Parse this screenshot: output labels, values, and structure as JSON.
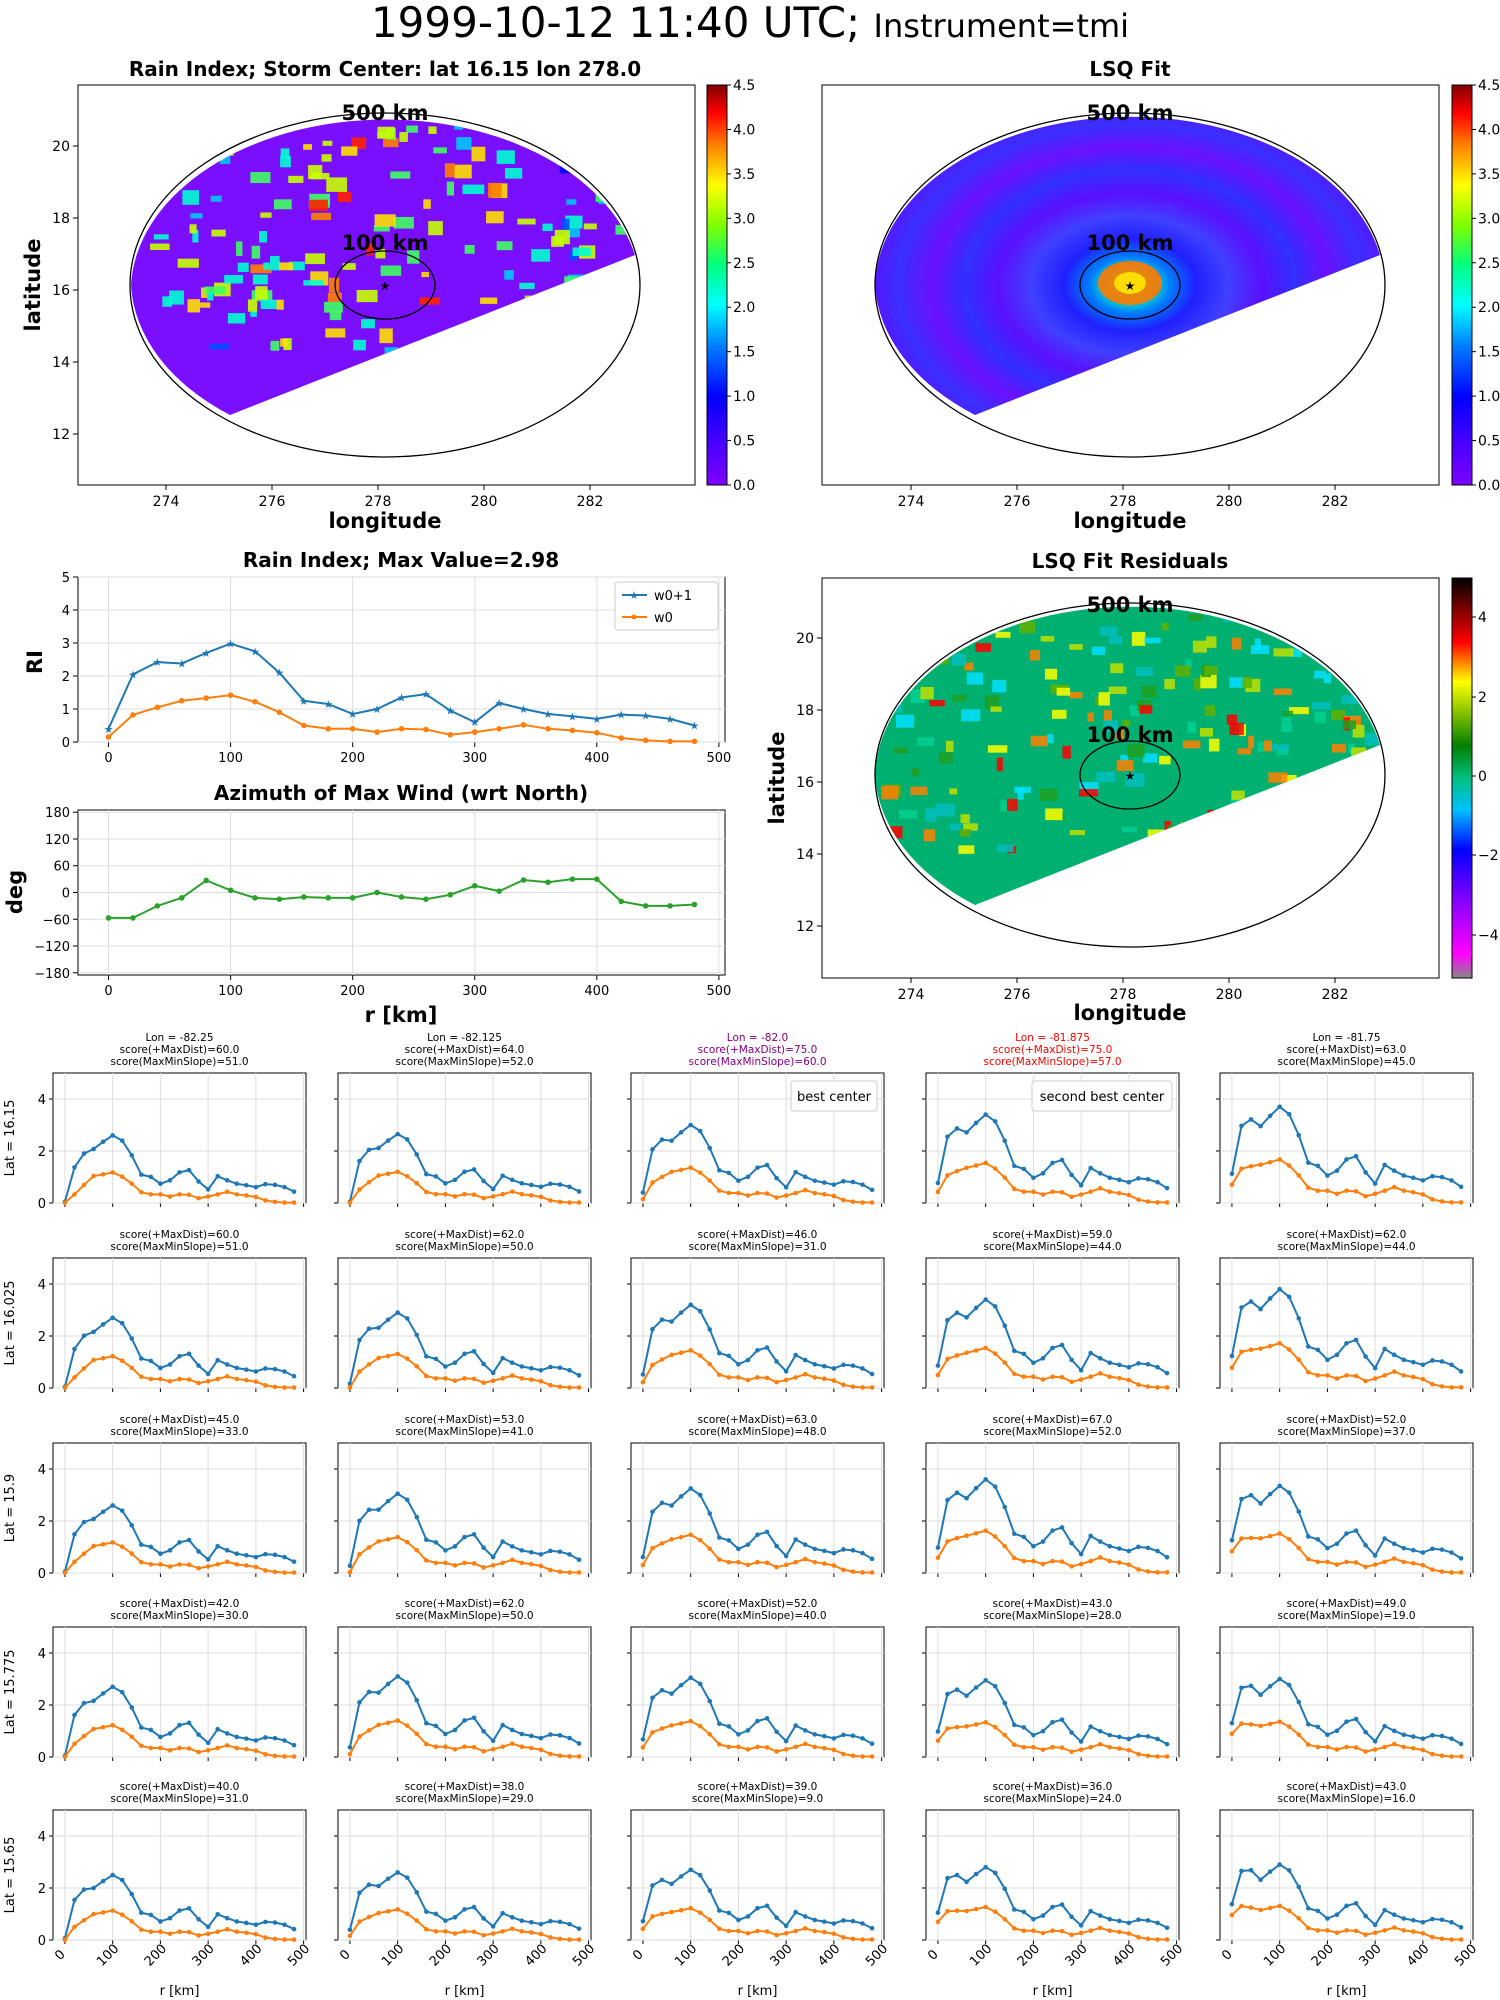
{
  "header": {
    "title": "1999-10-12 11:40 UTC;",
    "instrument": "Instrument=tmi"
  },
  "map_panels": {
    "rain_index": {
      "title": "Rain Index; Storm Center: lat 16.15 lon 278.0",
      "xlabel": "longitude",
      "ylabel": "latitude"
    },
    "lsq_fit": {
      "title": "LSQ Fit",
      "xlabel": "longitude",
      "ylabel": ""
    },
    "residuals": {
      "title": "LSQ Fit Residuals",
      "xlabel": "longitude",
      "ylabel": "latitude"
    },
    "ring_outer": "500 km",
    "ring_inner": "100 km",
    "colorbar_ticks": [
      "0.0",
      "0.5",
      "1.0",
      "1.5",
      "2.0",
      "2.5",
      "3.0",
      "3.5",
      "4.0",
      "4.5"
    ],
    "residual_colorbar_ticks": [
      "4",
      "2",
      "0",
      "−2",
      "−4"
    ],
    "lon_ticks": [
      "274",
      "276",
      "278",
      "280",
      "282"
    ],
    "lat_ticks": [
      "20",
      "18",
      "16",
      "14",
      "12"
    ]
  },
  "chart_data": [
    {
      "type": "line",
      "title": "Rain Index; Max Value=2.98",
      "ylabel": "RI",
      "xlabel": "",
      "xlim": [
        -25,
        505
      ],
      "ylim": [
        0,
        5
      ],
      "xticks": [
        "0",
        "100",
        "200",
        "300",
        "400",
        "500"
      ],
      "yticks": [
        "0",
        "1",
        "2",
        "3",
        "4",
        "5"
      ],
      "legend": "top-right",
      "x": [
        0,
        20,
        40,
        60,
        80,
        100,
        120,
        140,
        160,
        180,
        200,
        220,
        240,
        260,
        280,
        300,
        320,
        340,
        360,
        380,
        400,
        420,
        440,
        460,
        480
      ],
      "series": [
        {
          "name": "w0+1",
          "color": "#1f77b4",
          "marker": "star",
          "values": [
            0.4,
            2.05,
            2.42,
            2.38,
            2.7,
            2.98,
            2.75,
            2.1,
            1.25,
            1.15,
            0.85,
            1.0,
            1.35,
            1.45,
            0.95,
            0.6,
            1.18,
            1.0,
            0.85,
            0.78,
            0.7,
            0.83,
            0.8,
            0.7,
            0.5
          ]
        },
        {
          "name": "w0",
          "color": "#ff7f0e",
          "marker": "dot",
          "values": [
            0.15,
            0.82,
            1.05,
            1.25,
            1.33,
            1.42,
            1.22,
            0.9,
            0.5,
            0.4,
            0.4,
            0.3,
            0.4,
            0.38,
            0.22,
            0.3,
            0.4,
            0.52,
            0.4,
            0.35,
            0.28,
            0.12,
            0.05,
            0.02,
            0.02
          ]
        }
      ]
    },
    {
      "type": "line",
      "title": "Azimuth of Max Wind (wrt North)",
      "ylabel": "deg",
      "xlabel": "r [km]",
      "xlim": [
        -25,
        505
      ],
      "ylim": [
        -185,
        185
      ],
      "xticks": [
        "0",
        "100",
        "200",
        "300",
        "400",
        "500"
      ],
      "yticks": [
        "180",
        "120",
        "60",
        "0",
        "−60",
        "−120",
        "−180"
      ],
      "x": [
        0,
        20,
        40,
        60,
        80,
        100,
        120,
        140,
        160,
        180,
        200,
        220,
        240,
        260,
        280,
        300,
        320,
        340,
        360,
        380,
        400,
        420,
        440,
        460,
        480
      ],
      "series": [
        {
          "name": "",
          "color": "#2ca02c",
          "marker": "dot",
          "values": [
            -57,
            -57,
            -30,
            -12,
            27,
            5,
            -12,
            -15,
            -10,
            -12,
            -12,
            0,
            -10,
            -15,
            -5,
            15,
            3,
            28,
            23,
            30,
            30,
            -20,
            -30,
            -30,
            -27
          ]
        }
      ]
    }
  ],
  "grid": {
    "lon_titles": [
      "Lon = -82.25",
      "Lon = -82.125",
      "Lon = -82.0",
      "Lon = -81.875",
      "Lon = -81.75"
    ],
    "lon_colors": [
      "#000000",
      "#000000",
      "#800080",
      "#ff0000",
      "#000000"
    ],
    "lat_labels": [
      "Lat = 16.15",
      "Lat = 16.025",
      "Lat = 15.9",
      "Lat = 15.775",
      "Lat = 15.65"
    ],
    "xlabel": "r [km]",
    "xticks": [
      "0",
      "100",
      "200",
      "300",
      "400",
      "500"
    ],
    "yticks": [
      "0",
      "2",
      "4"
    ],
    "best_label": "best center",
    "second_label": "second best center",
    "scores": [
      [
        "score(+MaxDist)=60.0|score(MaxMinSlope)=51.0",
        "score(+MaxDist)=64.0|score(MaxMinSlope)=52.0",
        "score(+MaxDist)=75.0|score(MaxMinSlope)=60.0",
        "score(+MaxDist)=75.0|score(MaxMinSlope)=57.0",
        "score(+MaxDist)=63.0|score(MaxMinSlope)=45.0"
      ],
      [
        "score(+MaxDist)=60.0|score(MaxMinSlope)=51.0",
        "score(+MaxDist)=62.0|score(MaxMinSlope)=50.0",
        "score(+MaxDist)=46.0|score(MaxMinSlope)=31.0",
        "score(+MaxDist)=59.0|score(MaxMinSlope)=44.0",
        "score(+MaxDist)=62.0|score(MaxMinSlope)=44.0"
      ],
      [
        "score(+MaxDist)=45.0|score(MaxMinSlope)=33.0",
        "score(+MaxDist)=53.0|score(MaxMinSlope)=41.0",
        "score(+MaxDist)=63.0|score(MaxMinSlope)=48.0",
        "score(+MaxDist)=67.0|score(MaxMinSlope)=52.0",
        "score(+MaxDist)=52.0|score(MaxMinSlope)=37.0"
      ],
      [
        "score(+MaxDist)=42.0|score(MaxMinSlope)=30.0",
        "score(+MaxDist)=62.0|score(MaxMinSlope)=50.0",
        "score(+MaxDist)=52.0|score(MaxMinSlope)=40.0",
        "score(+MaxDist)=43.0|score(MaxMinSlope)=28.0",
        "score(+MaxDist)=49.0|score(MaxMinSlope)=19.0"
      ],
      [
        "score(+MaxDist)=40.0|score(MaxMinSlope)=31.0",
        "score(+MaxDist)=38.0|score(MaxMinSlope)=29.0",
        "score(+MaxDist)=39.0|score(MaxMinSlope)=9.0",
        "score(+MaxDist)=36.0|score(MaxMinSlope)=24.0",
        "score(+MaxDist)=43.0|score(MaxMinSlope)=16.0"
      ]
    ],
    "peaks": [
      [
        2.6,
        2.65,
        3.0,
        3.4,
        3.7
      ],
      [
        2.7,
        2.9,
        3.2,
        3.4,
        3.8
      ],
      [
        2.6,
        3.05,
        3.25,
        3.6,
        3.35
      ],
      [
        2.7,
        3.1,
        3.05,
        2.95,
        3.0
      ],
      [
        2.5,
        2.6,
        2.7,
        2.8,
        2.9
      ]
    ]
  }
}
